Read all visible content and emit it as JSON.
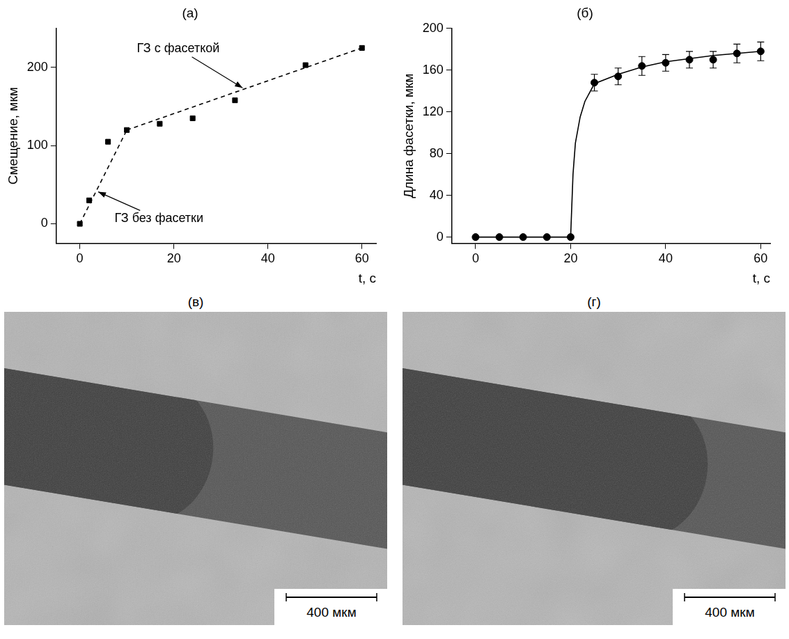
{
  "chart_data": [
    {
      "type": "scatter",
      "title": "(а)",
      "x_label": "t, с",
      "y_label": "Смещение, мкм",
      "xlim": [
        -5,
        63
      ],
      "xticks": [
        0,
        20,
        40,
        60
      ],
      "ylim": [
        -25,
        250
      ],
      "yticks": [
        0,
        100,
        200
      ],
      "grid": false,
      "series": [
        {
          "type": "scatter",
          "marker": "square",
          "color": "#000000",
          "x": [
            0,
            2,
            6,
            10,
            17,
            24,
            33,
            48,
            60
          ],
          "values": [
            0,
            30,
            105,
            120,
            128,
            135,
            158,
            203,
            225
          ]
        },
        {
          "name": "ГЗ без фасетки",
          "type": "line",
          "line_style": "dashed",
          "color": "#000000",
          "x": [
            0,
            10
          ],
          "values": [
            0,
            120
          ]
        },
        {
          "name": "ГЗ с фасеткой",
          "type": "line",
          "line_style": "dashed",
          "color": "#000000",
          "x": [
            10,
            60
          ],
          "values": [
            120,
            225
          ]
        }
      ]
    },
    {
      "type": "scatter",
      "title": "(б)",
      "x_label": "t, с",
      "y_label": "Длина фасетки, мкм",
      "xlim": [
        -5,
        62
      ],
      "xticks": [
        0,
        20,
        40,
        60
      ],
      "ylim": [
        -6,
        200
      ],
      "yticks": [
        0,
        40,
        80,
        120,
        160,
        200
      ],
      "grid": false,
      "series": [
        {
          "type": "line",
          "line_style": "solid",
          "color": "#000000",
          "x": [
            0,
            20,
            20.5,
            21,
            22,
            23,
            25,
            30,
            35,
            40,
            45,
            50,
            55,
            60
          ],
          "values": [
            0,
            0,
            60,
            90,
            115,
            130,
            147,
            156,
            163,
            168,
            171,
            174,
            176,
            178
          ]
        },
        {
          "type": "scatter",
          "marker": "circle",
          "color": "#000000",
          "x": [
            0,
            5,
            10,
            15,
            20,
            25,
            30,
            35,
            40,
            45,
            50,
            55,
            60
          ],
          "values": [
            0,
            0,
            0,
            0,
            0,
            148,
            154,
            164,
            167,
            170,
            170,
            176,
            178
          ],
          "errors": [
            0,
            0,
            0,
            0,
            0,
            8,
            8,
            9,
            8,
            8,
            8,
            9,
            9
          ]
        }
      ]
    }
  ],
  "images": [
    {
      "label": "(в)",
      "scale_bar": "400 мкм"
    },
    {
      "label": "(г)",
      "scale_bar": "400 мкм"
    }
  ]
}
